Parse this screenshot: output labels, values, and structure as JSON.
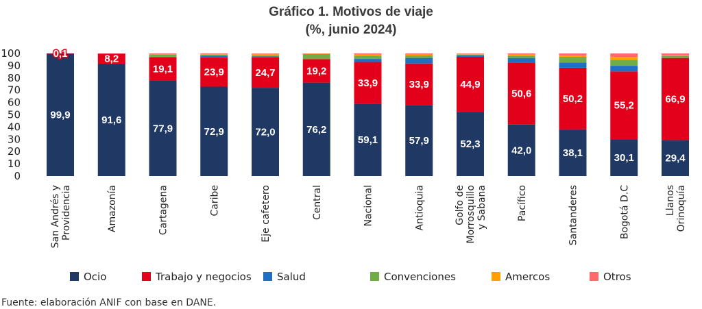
{
  "chart_data": {
    "type": "bar",
    "stacked": true,
    "title_lines": [
      "Gráfico 1. Motivos de viaje",
      "(%, junio 2024)"
    ],
    "ylim": [
      0,
      100
    ],
    "yticks": [
      0,
      10,
      20,
      30,
      40,
      50,
      60,
      70,
      80,
      90,
      100
    ],
    "categories": [
      [
        "San Andrés y",
        "Providencia"
      ],
      [
        "Amazonía"
      ],
      [
        "Cartagena"
      ],
      [
        "Caribe"
      ],
      [
        "Eje cafetero"
      ],
      [
        "Central"
      ],
      [
        "Nacional"
      ],
      [
        "Antioquia"
      ],
      [
        "Golfo de",
        "Morrosquillo",
        "y Sabana"
      ],
      [
        "Pacífico"
      ],
      [
        "Santanderes"
      ],
      [
        "Bogotá D.C"
      ],
      [
        "Llanos",
        "Orinoquía"
      ]
    ],
    "series": [
      {
        "name": "Ocio",
        "color": "#1f3864",
        "values": [
          99.9,
          91.6,
          77.9,
          72.9,
          72.0,
          76.2,
          59.1,
          57.9,
          52.3,
          42.0,
          38.1,
          30.1,
          29.4
        ],
        "labels": [
          "99,9",
          "91,6",
          "77,9",
          "72,9",
          "72,0",
          "76,2",
          "59,1",
          "57,9",
          "52,3",
          "42,0",
          "38,1",
          "30,1",
          "29,4"
        ]
      },
      {
        "name": "Trabajo y negocios",
        "color": "#e2001a",
        "values": [
          0.1,
          8.2,
          19.1,
          23.9,
          24.7,
          19.2,
          33.9,
          33.9,
          44.9,
          50.6,
          50.2,
          55.2,
          66.9
        ],
        "labels": [
          "0,1",
          "8,2",
          "19,1",
          "23,9",
          "24,7",
          "19,2",
          "33,9",
          "33,9",
          "44,9",
          "50,6",
          "50,2",
          "55,2",
          "66,9"
        ]
      },
      {
        "name": "Salud",
        "color": "#1f6fc5",
        "values": [
          0,
          0,
          0,
          1.3,
          0.8,
          0,
          2.5,
          4.5,
          1.3,
          3.7,
          4.3,
          4.6,
          0
        ]
      },
      {
        "name": "Convenciones",
        "color": "#70ad47",
        "values": [
          0,
          0,
          1.9,
          0.8,
          0.9,
          4.2,
          2.5,
          2.0,
          0.5,
          1.7,
          4.6,
          4.9,
          1.5
        ]
      },
      {
        "name": "Amercos",
        "color": "#ffa000",
        "values": [
          0,
          0,
          0.3,
          0.5,
          1.1,
          0.2,
          1.0,
          0.8,
          0.6,
          1.0,
          1.0,
          2.3,
          0.6
        ]
      },
      {
        "name": "Otros",
        "color": "#ff6b6b",
        "values": [
          0,
          0.2,
          0.8,
          0.6,
          0.5,
          0.2,
          1.0,
          0.9,
          0.4,
          1.0,
          1.8,
          2.9,
          1.6
        ]
      }
    ],
    "legend_position": "bottom",
    "grid": false
  },
  "source": "Fuente: elaboración ANIF con base en DANE."
}
